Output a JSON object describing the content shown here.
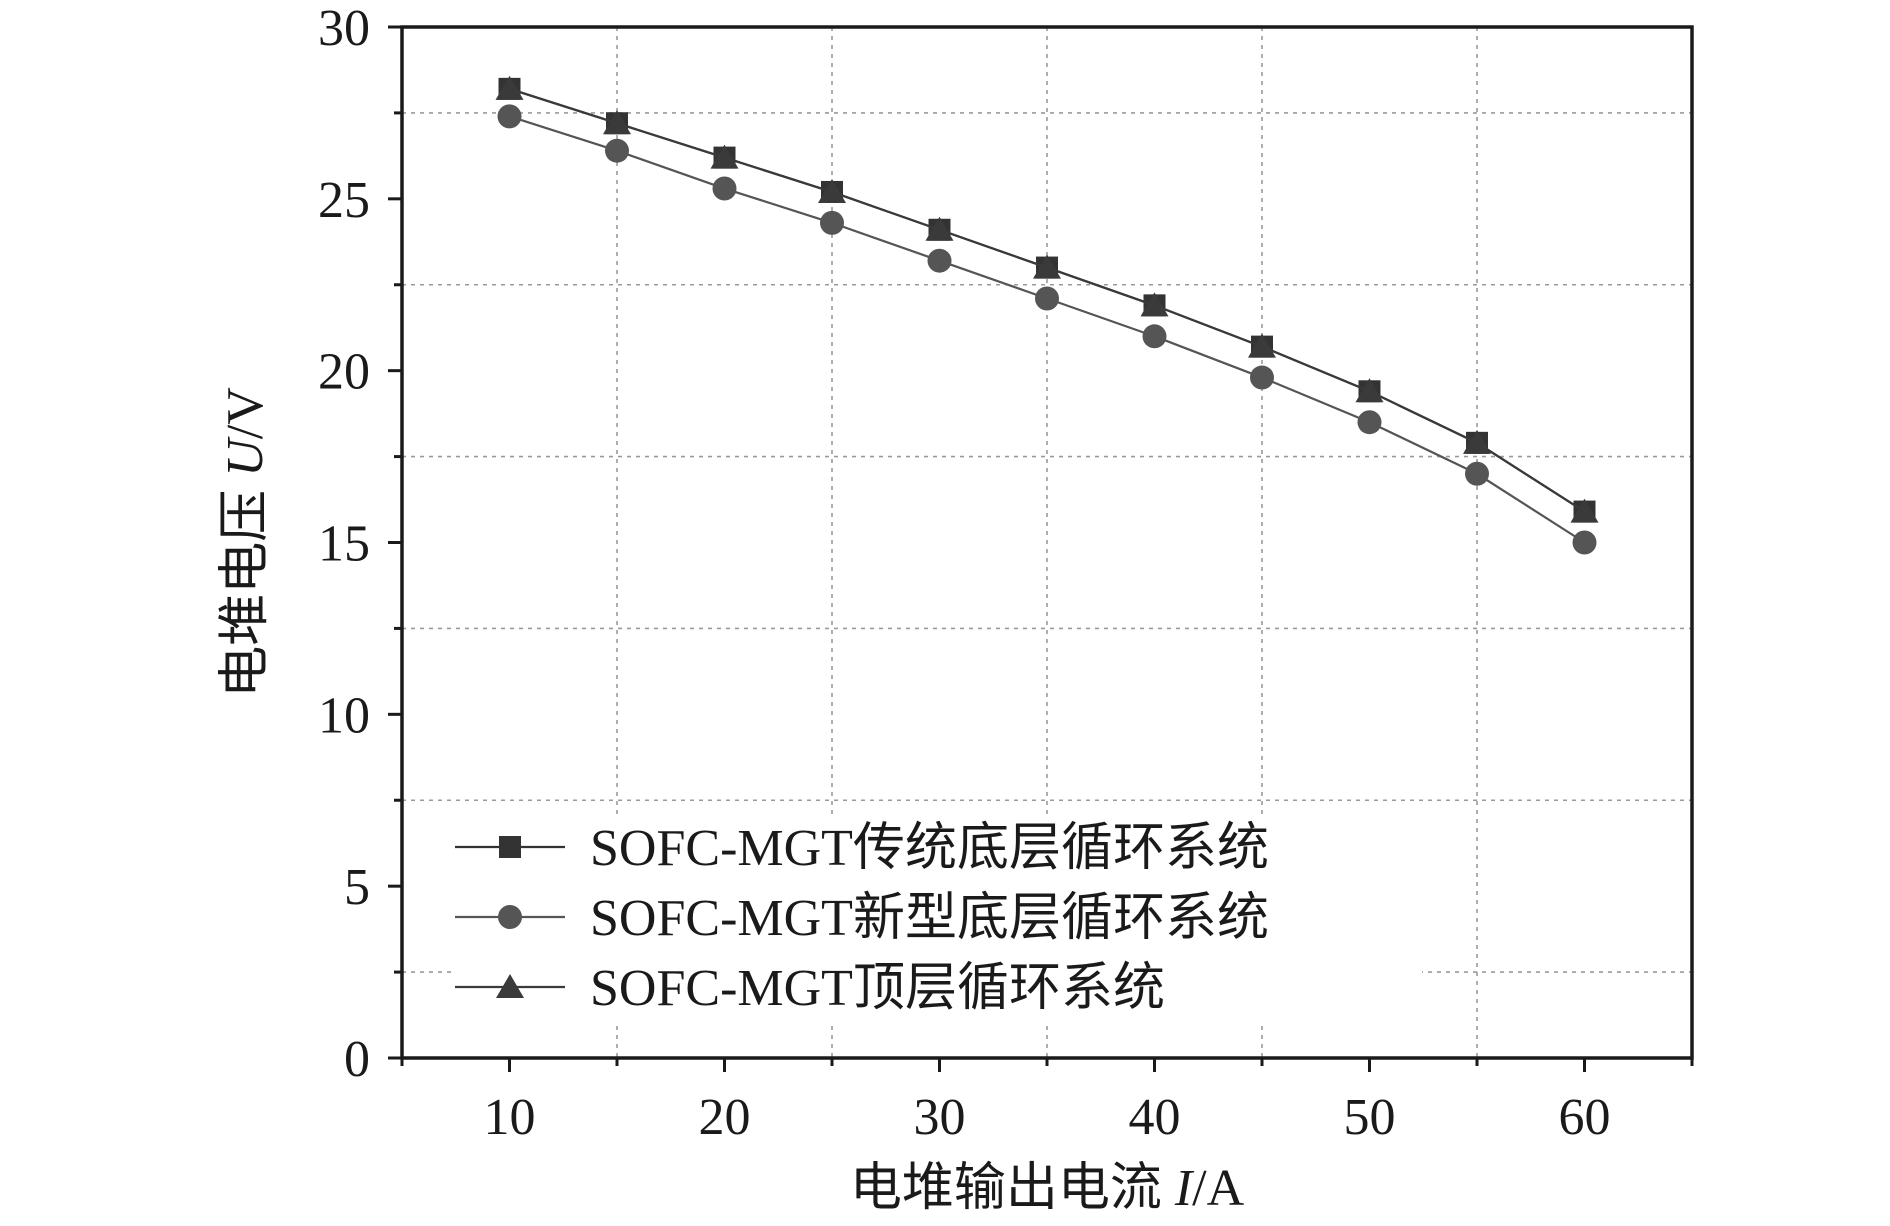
{
  "chart_data": {
    "type": "line",
    "xlabel_prefix": "电堆输出电流 ",
    "xlabel_var": "I",
    "xlabel_unit": "/A",
    "ylabel_prefix": "电堆电压 ",
    "ylabel_var": "U",
    "ylabel_unit": "/V",
    "xlim": [
      5,
      65
    ],
    "ylim": [
      0,
      30
    ],
    "x_ticks": [
      10,
      20,
      30,
      40,
      50,
      60
    ],
    "x_minor_ticks": [
      5,
      15,
      25,
      35,
      45,
      55,
      65
    ],
    "y_ticks": [
      0,
      5,
      10,
      15,
      20,
      25,
      30
    ],
    "y_minor_ticks": [
      2.5,
      7.5,
      12.5,
      17.5,
      22.5,
      27.5
    ],
    "grid": true,
    "legend_position": "lower-left",
    "x": [
      10,
      15,
      20,
      25,
      30,
      35,
      40,
      45,
      50,
      55,
      60
    ],
    "series": [
      {
        "name": "SOFC-MGT传统底层循环系统",
        "marker": "square",
        "color": "#333333",
        "values": [
          28.2,
          27.2,
          26.2,
          25.2,
          24.1,
          23.0,
          21.9,
          20.7,
          19.4,
          17.9,
          15.9
        ]
      },
      {
        "name": "SOFC-MGT新型底层循环系统",
        "marker": "circle",
        "color": "#555555",
        "values": [
          27.4,
          26.4,
          25.3,
          24.3,
          23.2,
          22.1,
          21.0,
          19.8,
          18.5,
          17.0,
          15.0
        ]
      },
      {
        "name": "SOFC-MGT顶层循环系统",
        "marker": "triangle",
        "color": "#3a3a3a",
        "values": [
          28.2,
          27.2,
          26.2,
          25.2,
          24.1,
          23.0,
          21.9,
          20.7,
          19.4,
          17.9,
          15.9
        ]
      }
    ]
  }
}
